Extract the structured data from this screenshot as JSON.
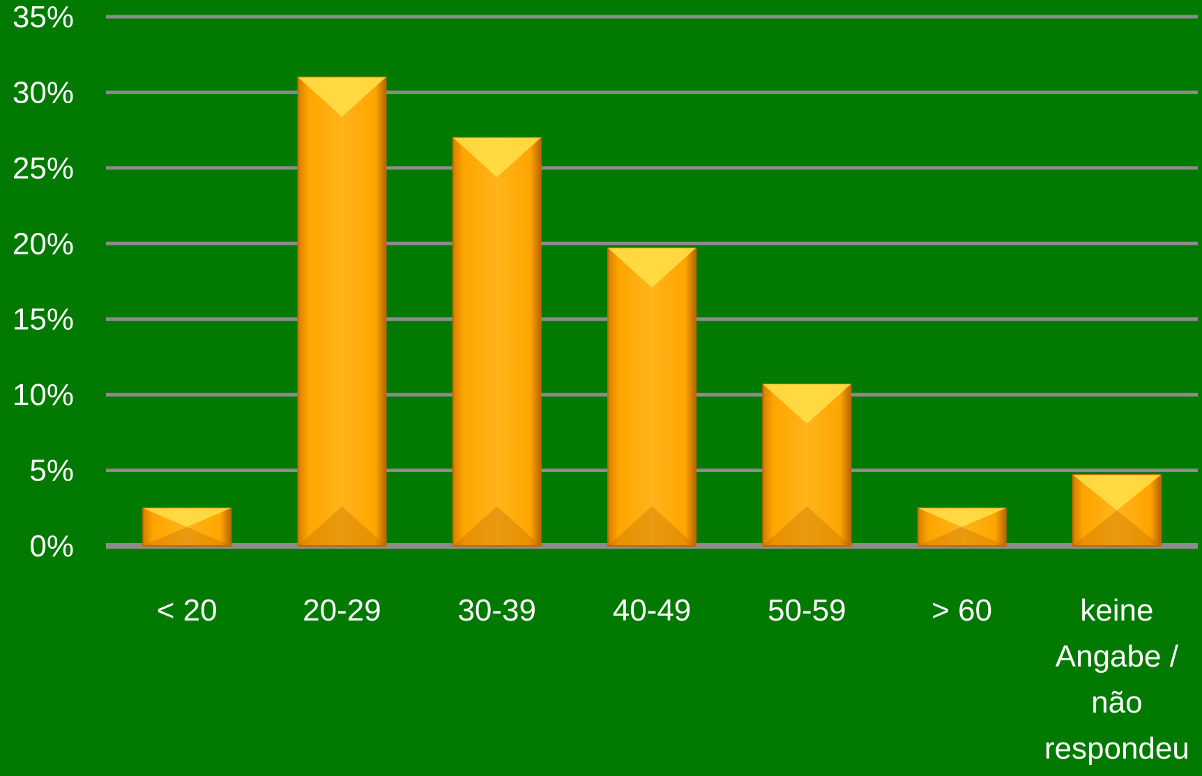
{
  "colors": {
    "background": "#027a02",
    "gridline": "#8c8c8c",
    "bar_fill": "#ffa500",
    "bar_highlight": "#ffe14a",
    "bar_shadow": "#c06a00",
    "text": "#ffffff"
  },
  "chart_data": {
    "type": "bar",
    "title": "",
    "xlabel": "",
    "ylabel": "",
    "grid": true,
    "legend": "none",
    "ylim": [
      0,
      0.35
    ],
    "y_ticks": [
      {
        "value": 0.0,
        "label": "0%"
      },
      {
        "value": 0.05,
        "label": "5%"
      },
      {
        "value": 0.1,
        "label": "10%"
      },
      {
        "value": 0.15,
        "label": "15%"
      },
      {
        "value": 0.2,
        "label": "20%"
      },
      {
        "value": 0.25,
        "label": "25%"
      },
      {
        "value": 0.3,
        "label": "30%"
      },
      {
        "value": 0.35,
        "label": "35%"
      }
    ],
    "categories": [
      [
        "< 20"
      ],
      [
        "20-29"
      ],
      [
        "30-39"
      ],
      [
        "40-49"
      ],
      [
        "50-59"
      ],
      [
        "> 60"
      ],
      [
        "keine",
        "Angabe /",
        "não",
        "respondeu"
      ]
    ],
    "values": [
      0.025,
      0.31,
      0.27,
      0.197,
      0.107,
      0.025,
      0.047
    ]
  }
}
